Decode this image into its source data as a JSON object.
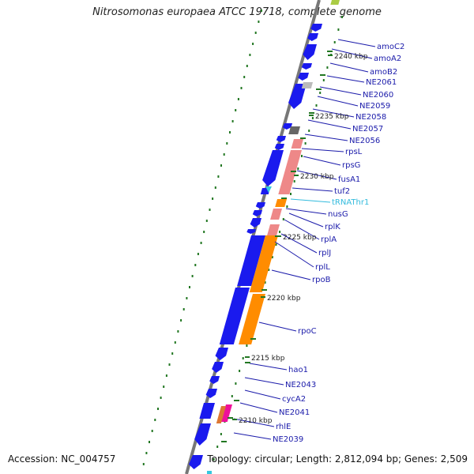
{
  "title": "Nitrosomonas europaea ATCC 19718, complete genome",
  "footer": {
    "accession": "Accession: NC_004757",
    "topology": "Topology: circular; Length: 2,812,094 bp; Genes: 2,509"
  },
  "kbp_ticks": [
    "2240 kbp",
    "2235 kbp",
    "2230 kbp",
    "2225 kbp",
    "2220 kbp",
    "2215 kbp",
    "2210 kbp"
  ],
  "colors": {
    "cds": "#1a1aee",
    "ribosomal": "#ee8888",
    "rna_polymerase": "#ff8c00",
    "trna": "#33c8e0",
    "label": "#1a1aaa",
    "trna_label": "#33bbdd",
    "tick": "#227722",
    "backbone": "#777777"
  },
  "gene_labels": [
    {
      "name": "amoC2",
      "kind": "cds"
    },
    {
      "name": "amoA2",
      "kind": "cds"
    },
    {
      "name": "amoB2",
      "kind": "cds"
    },
    {
      "name": "NE2061",
      "kind": "cds"
    },
    {
      "name": "NE2060",
      "kind": "cds"
    },
    {
      "name": "NE2059",
      "kind": "cds"
    },
    {
      "name": "NE2058",
      "kind": "cds"
    },
    {
      "name": "NE2057",
      "kind": "cds"
    },
    {
      "name": "NE2056",
      "kind": "cds"
    },
    {
      "name": "rpsL",
      "kind": "cds"
    },
    {
      "name": "rpsG",
      "kind": "cds"
    },
    {
      "name": "fusA1",
      "kind": "cds"
    },
    {
      "name": "tuf2",
      "kind": "cds"
    },
    {
      "name": "tRNAThr1",
      "kind": "trna"
    },
    {
      "name": "nusG",
      "kind": "cds"
    },
    {
      "name": "rplK",
      "kind": "cds"
    },
    {
      "name": "rplA",
      "kind": "cds"
    },
    {
      "name": "rplJ",
      "kind": "cds"
    },
    {
      "name": "rplL",
      "kind": "cds"
    },
    {
      "name": "rpoB",
      "kind": "cds"
    },
    {
      "name": "rpoC",
      "kind": "cds"
    },
    {
      "name": "hao1",
      "kind": "cds"
    },
    {
      "name": "NE2043",
      "kind": "cds"
    },
    {
      "name": "cycA2",
      "kind": "cds"
    },
    {
      "name": "NE2041",
      "kind": "cds"
    },
    {
      "name": "rhlE",
      "kind": "cds"
    },
    {
      "name": "NE2039",
      "kind": "cds"
    }
  ]
}
